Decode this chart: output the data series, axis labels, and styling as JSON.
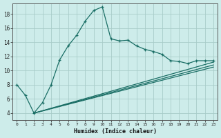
{
  "xlabel": "Humidex (Indice chaleur)",
  "bg_color": "#cdecea",
  "line_color": "#1a6e65",
  "grid_color": "#b8ddd9",
  "xlim": [
    -0.5,
    23.5
  ],
  "ylim": [
    3.0,
    19.5
  ],
  "xticks": [
    0,
    1,
    2,
    3,
    4,
    5,
    6,
    7,
    8,
    9,
    10,
    11,
    12,
    13,
    14,
    15,
    16,
    17,
    18,
    19,
    20,
    21,
    22,
    23
  ],
  "yticks": [
    4,
    6,
    8,
    10,
    12,
    14,
    16,
    18
  ],
  "main_x": [
    0,
    1,
    2,
    3,
    4,
    5,
    6,
    7,
    8,
    9,
    10,
    11,
    12,
    13,
    14,
    15,
    16,
    17,
    18,
    19,
    20,
    21,
    22,
    23
  ],
  "main_y": [
    8.0,
    6.5,
    4.0,
    5.5,
    8.0,
    11.5,
    13.5,
    15.0,
    17.0,
    18.5,
    19.0,
    14.5,
    14.2,
    14.3,
    13.5,
    13.0,
    12.7,
    12.3,
    11.4,
    11.3,
    11.0,
    11.4,
    11.4,
    11.4
  ],
  "line2_x": [
    2,
    23
  ],
  "line2_y": [
    4.0,
    11.2
  ],
  "line3_x": [
    2,
    23
  ],
  "line3_y": [
    4.0,
    10.8
  ],
  "line4_x": [
    2,
    23
  ],
  "line4_y": [
    4.0,
    10.5
  ],
  "xlabel_fontsize": 6,
  "tick_fontsize_x": 4.5,
  "tick_fontsize_y": 5.5
}
